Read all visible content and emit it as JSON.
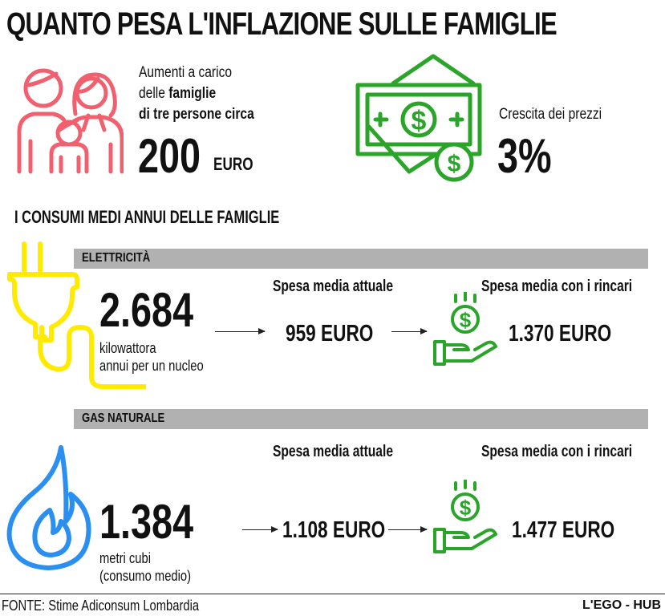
{
  "title": "QUANTO PESA L'INFLAZIONE SULLE FAMIGLIE",
  "top_left": {
    "line1": "Aumenti a carico",
    "line2_prefix": "delle ",
    "line2_bold": "famiglie",
    "line3": "di tre persone circa",
    "value": "200",
    "unit": "EURO",
    "icon": "family-icon",
    "color": "#f0606e"
  },
  "top_right": {
    "label": "Crescita  dei prezzi",
    "value": "3%",
    "icon": "money-icon",
    "color": "#2aa52a"
  },
  "section_heading": "I CONSUMI MEDI ANNUI DELLE FAMIGLIE",
  "electricity": {
    "bar_label": "ELETTRICITÀ",
    "amount": "2.684",
    "unit_line1": "kilowattora",
    "unit_line2": "annui per un nucleo",
    "current_header": "Spesa media attuale",
    "current_value": "959 EURO",
    "new_header": "Spesa media con i rincari",
    "new_value": "1.370 EURO",
    "icon": "plug-icon",
    "color": "#ffea00"
  },
  "gas": {
    "bar_label": "GAS NATURALE",
    "amount": "1.384",
    "unit_line1": "metri cubi",
    "unit_line2": "(consumo medio)",
    "current_header": "Spesa media attuale",
    "current_value": "1.108 EURO",
    "new_header": "Spesa media con i rincari",
    "new_value": "1.477 EURO",
    "icon": "flame-icon",
    "color": "#2a8ff0"
  },
  "footer": {
    "source": "FONTE: Stime Adiconsum Lombardia",
    "brand": "L'EGO - HUB"
  }
}
